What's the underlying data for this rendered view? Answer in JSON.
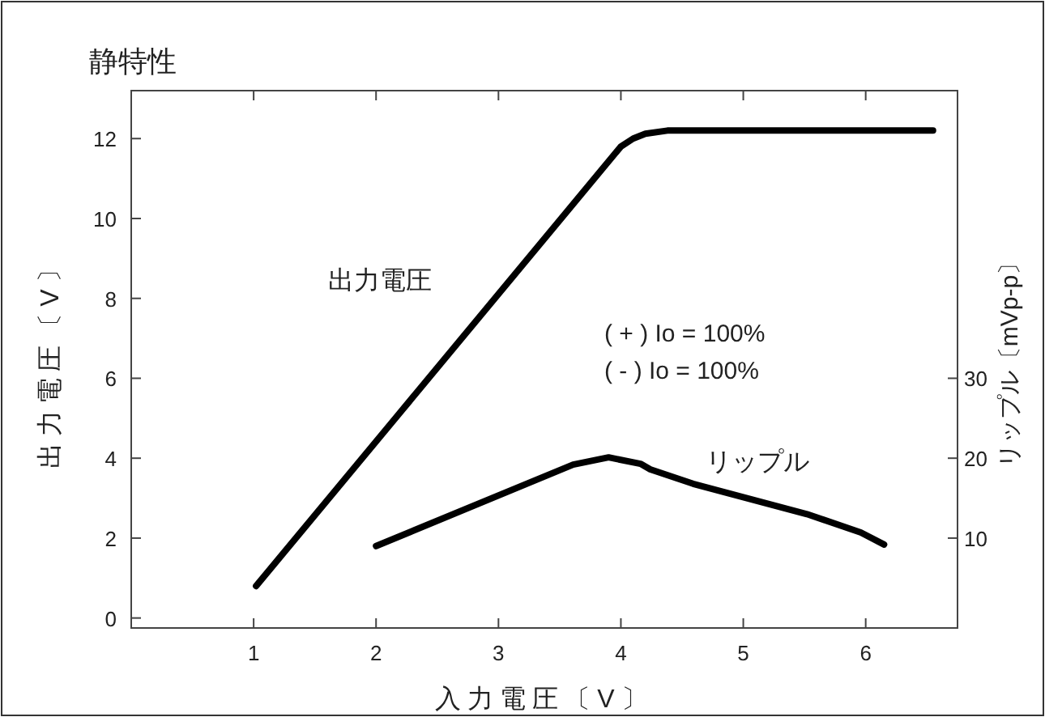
{
  "chart_data": {
    "type": "line",
    "title": "静特性",
    "xlabel": "入力電圧〔V〕",
    "ylabel": "出力電圧〔V〕",
    "y2label": "リップル〔mVp-p〕",
    "xlim": [
      0,
      6.75
    ],
    "xticks": [
      1,
      2,
      3,
      4,
      5,
      6
    ],
    "ylim": [
      -0.25,
      13.2
    ],
    "yticks": [
      0,
      2,
      4,
      6,
      8,
      10,
      12
    ],
    "y2lim": [
      -1.25,
      66
    ],
    "y2ticks": [
      10,
      20,
      30
    ],
    "series": [
      {
        "name": "出力電圧",
        "color": "#000000",
        "x": [
          1.02,
          4.0,
          4.1,
          4.2,
          4.38,
          6.55
        ],
        "values": [
          0.8,
          11.8,
          12.0,
          12.12,
          12.2,
          12.2
        ]
      },
      {
        "name": "リップル",
        "color": "#000000",
        "axis": "y2",
        "x": [
          2.0,
          3.61,
          3.9,
          4.16,
          4.24,
          4.59,
          5.52,
          5.96,
          6.15
        ],
        "values": [
          9.0,
          19.2,
          20.1,
          19.3,
          18.6,
          16.8,
          13.0,
          10.7,
          9.2
        ]
      }
    ],
    "annotations": [
      "( + ) Io = 100%",
      "( - ) Io = 100%"
    ],
    "marker": "none",
    "line_style": "solid"
  }
}
